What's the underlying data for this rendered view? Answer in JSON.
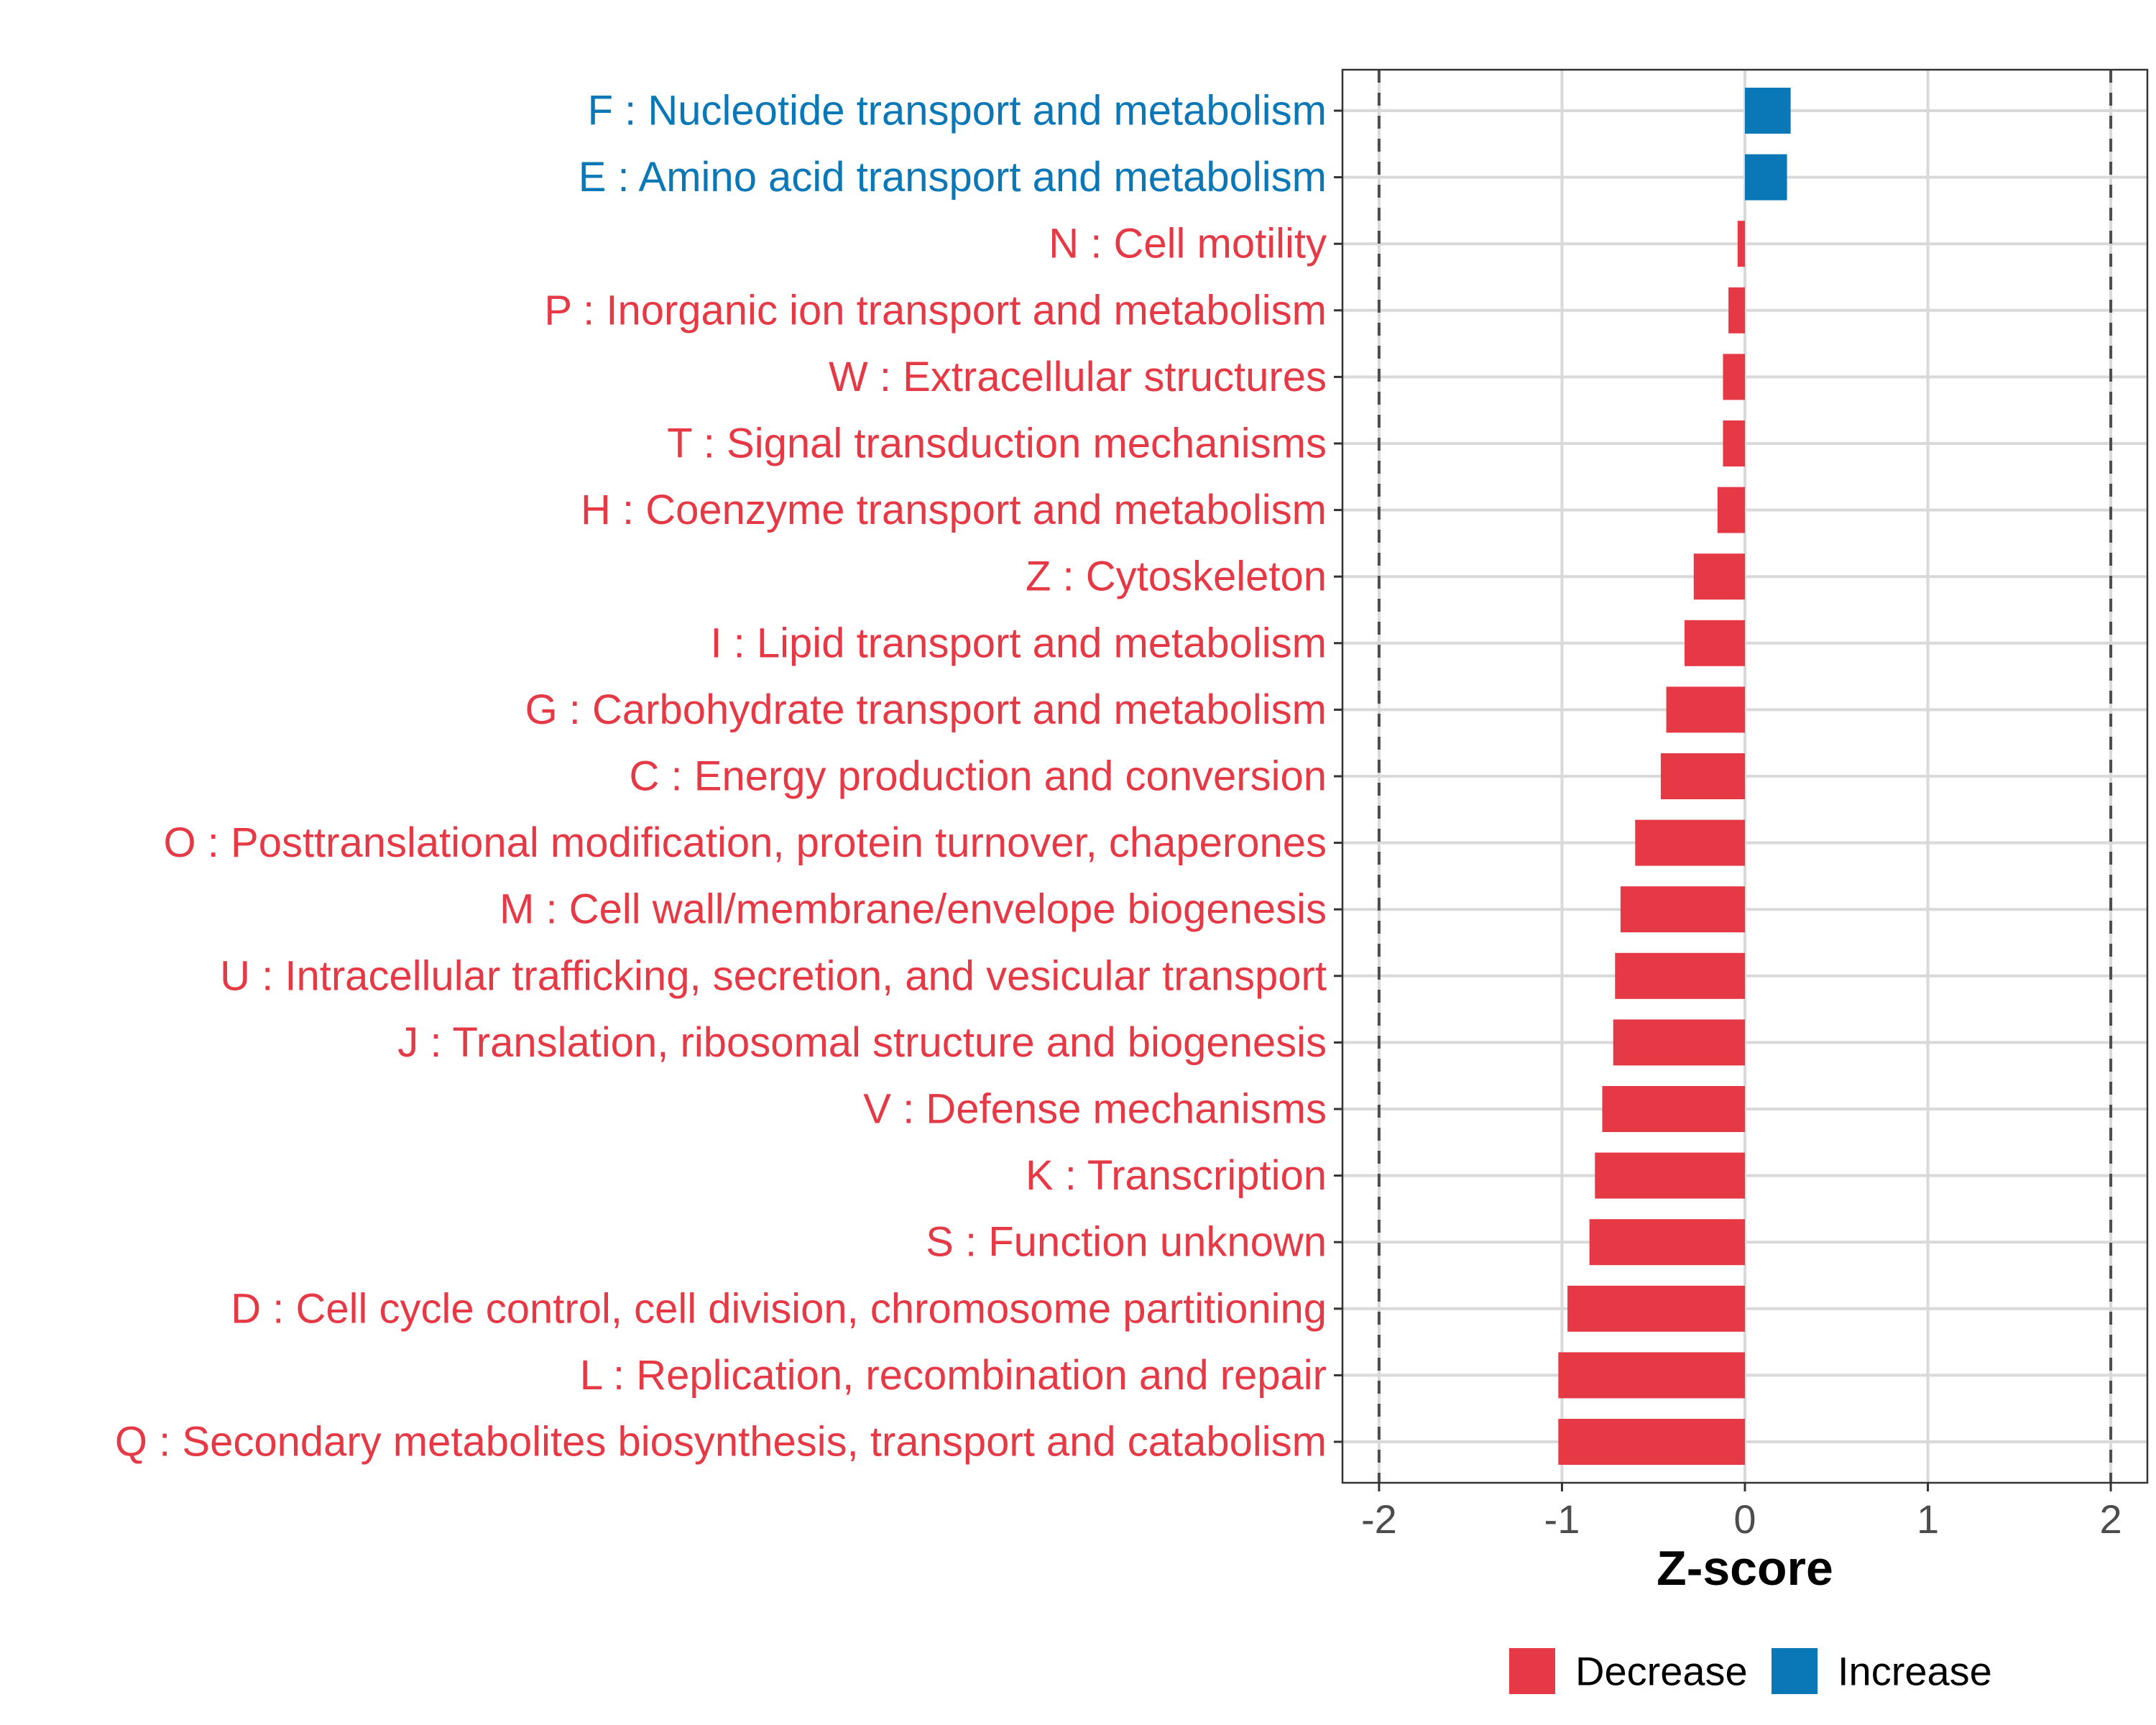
{
  "chart_data": {
    "type": "bar",
    "orientation": "horizontal",
    "title": "",
    "xlabel": "Z-score",
    "ylabel": "",
    "xlim": [
      -2.2,
      2.2
    ],
    "x_ticks": [
      -2,
      -1,
      0,
      1,
      2
    ],
    "x_tick_labels": [
      "-2",
      "-1",
      "0",
      "1",
      "2"
    ],
    "reference_lines": [
      -2,
      2
    ],
    "grid": true,
    "colors": {
      "Decrease": "#e63946",
      "Increase": "#0a77b6"
    },
    "legend": {
      "position": "bottom",
      "entries": [
        {
          "label": "Decrease",
          "color": "#e63946"
        },
        {
          "label": "Increase",
          "color": "#0a77b6"
        }
      ]
    },
    "categories": [
      "F : Nucleotide transport and metabolism",
      "E : Amino acid transport and metabolism",
      "N : Cell motility",
      "P : Inorganic ion transport and metabolism",
      "W : Extracellular structures",
      "T : Signal transduction mechanisms",
      "H : Coenzyme transport and metabolism",
      "Z : Cytoskeleton",
      "I : Lipid transport and metabolism",
      "G : Carbohydrate transport and metabolism",
      "C : Energy production and conversion",
      "O : Posttranslational modification, protein turnover, chaperones",
      "M : Cell wall/membrane/envelope biogenesis",
      "U : Intracellular trafficking, secretion, and vesicular transport",
      "J : Translation, ribosomal structure and biogenesis",
      "V : Defense mechanisms",
      "K : Transcription",
      "S : Function unknown",
      "D : Cell cycle control, cell division, chromosome partitioning",
      "L : Replication, recombination and repair",
      "Q : Secondary metabolites biosynthesis, transport and catabolism"
    ],
    "values": [
      0.25,
      0.23,
      -0.04,
      -0.09,
      -0.12,
      -0.12,
      -0.15,
      -0.28,
      -0.33,
      -0.43,
      -0.46,
      -0.6,
      -0.68,
      -0.71,
      -0.72,
      -0.78,
      -0.82,
      -0.85,
      -0.97,
      -1.02,
      -1.02
    ],
    "groups": [
      "Increase",
      "Increase",
      "Decrease",
      "Decrease",
      "Decrease",
      "Decrease",
      "Decrease",
      "Decrease",
      "Decrease",
      "Decrease",
      "Decrease",
      "Decrease",
      "Decrease",
      "Decrease",
      "Decrease",
      "Decrease",
      "Decrease",
      "Decrease",
      "Decrease",
      "Decrease",
      "Decrease"
    ]
  }
}
